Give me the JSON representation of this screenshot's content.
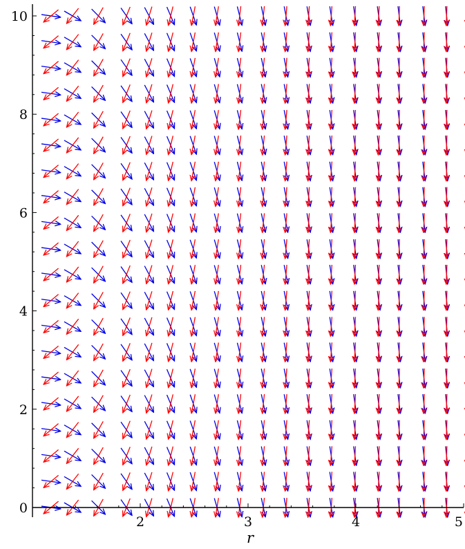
{
  "chart_data": {
    "type": "vector field",
    "title": "",
    "xlabel": "r",
    "ylabel": "",
    "xlim": [
      1.0,
      5.0
    ],
    "ylim": [
      0.0,
      10.0
    ],
    "x_ticks": [
      2,
      3,
      4,
      5
    ],
    "x_tick_labels": [
      "2",
      "3",
      "4",
      "5"
    ],
    "y_ticks": [
      0,
      2,
      4,
      6,
      8,
      10
    ],
    "y_tick_labels": [
      "0",
      "2",
      "4",
      "6",
      "8",
      "10"
    ],
    "grid": false,
    "legend": "none",
    "grid_x": [
      1.14,
      1.34,
      1.58,
      1.84,
      2.05,
      2.25,
      2.46,
      2.68,
      2.89,
      3.11,
      3.32,
      3.53,
      3.74,
      3.96,
      4.18,
      4.37,
      4.6,
      4.81,
      5.0
    ],
    "grid_y": [
      0.0,
      0.53,
      1.05,
      1.58,
      2.11,
      2.63,
      3.16,
      3.68,
      4.21,
      4.74,
      5.26,
      5.79,
      6.32,
      6.84,
      7.37,
      7.89,
      8.42,
      8.95,
      9.47,
      10.0
    ],
    "series": [
      {
        "color": "#0000e6",
        "direction": "down-right",
        "angles_deg_from_horizontal": [
          -8,
          -30,
          -45,
          -55,
          -62,
          -67,
          -71,
          -74,
          -76,
          -78,
          -79,
          -80,
          -81,
          -82,
          -82,
          -83,
          -83,
          -84,
          -84
        ]
      },
      {
        "color": "#ff0000",
        "direction": "down-left",
        "angles_deg_from_horizontal": [
          -140,
          -128,
          -119,
          -112,
          -107,
          -104,
          -101,
          -99,
          -97,
          -96,
          -95,
          -94,
          -94,
          -93,
          -93,
          -92,
          -92,
          -92,
          -91
        ]
      }
    ]
  }
}
